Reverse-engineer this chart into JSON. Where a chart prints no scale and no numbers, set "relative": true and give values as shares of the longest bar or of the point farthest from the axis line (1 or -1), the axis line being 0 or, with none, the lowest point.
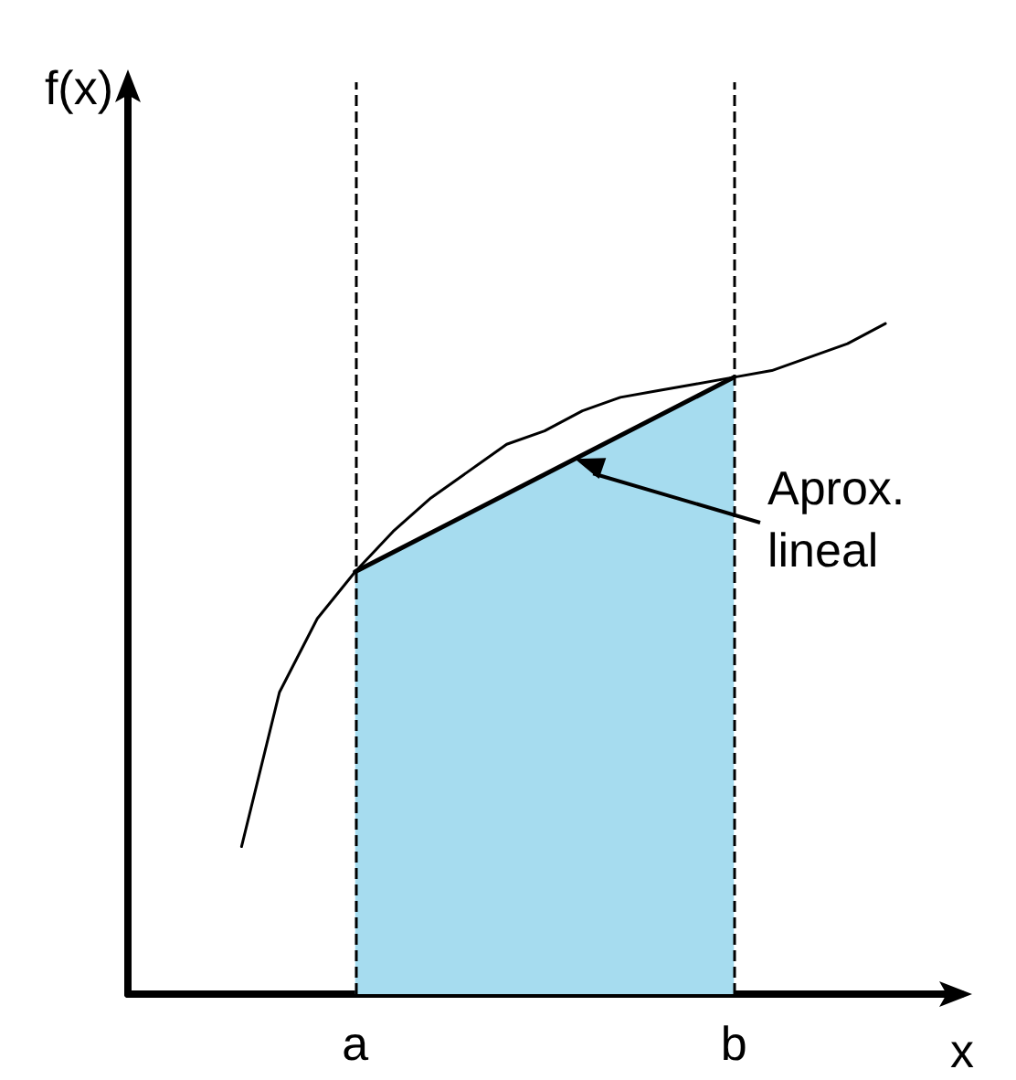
{
  "chart_data": {
    "type": "line",
    "relative": true,
    "xlabel": "x",
    "ylabel": "f(x)",
    "categories": [
      null,
      null,
      null,
      null,
      null,
      null,
      "a",
      null,
      null,
      null,
      null,
      null,
      null,
      null,
      null,
      null,
      "b",
      null,
      null,
      null,
      null,
      null,
      null
    ],
    "series": [
      {
        "type": "line",
        "color": "#000000",
        "values": [
          null,
          null,
          null,
          0.22,
          0.45,
          0.56,
          0.63,
          0.69,
          0.74,
          0.78,
          0.82,
          0.84,
          0.87,
          0.89,
          0.9,
          0.91,
          0.92,
          0.93,
          0.95,
          0.97,
          1.0,
          null,
          null
        ]
      },
      {
        "type": "area",
        "color": "#a6dcef",
        "values": [
          null,
          null,
          null,
          null,
          null,
          null,
          0.63,
          null,
          null,
          null,
          null,
          null,
          null,
          null,
          null,
          null,
          0.92,
          null,
          null,
          null,
          null,
          null,
          null
        ]
      }
    ],
    "ref_lines": [
      {
        "axis": "x",
        "value": "a",
        "line_style": "dashed"
      },
      {
        "axis": "x",
        "value": "b",
        "line_style": "dashed"
      }
    ],
    "annotations": [
      "Aprox.\nlineal"
    ],
    "grid": false,
    "marker": "none",
    "line_style": "solid"
  }
}
